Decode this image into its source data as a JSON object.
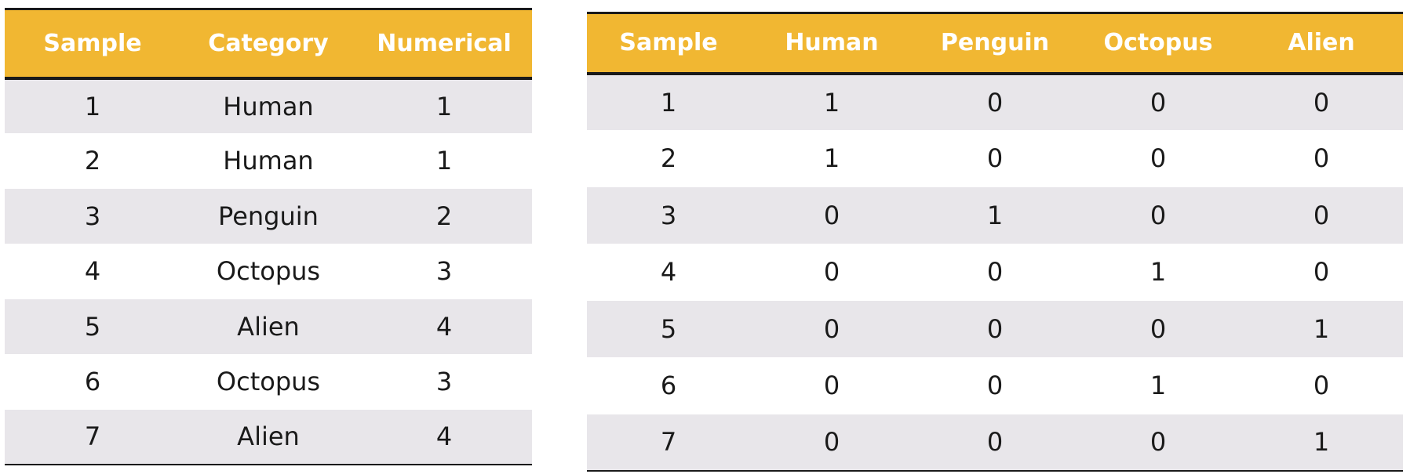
{
  "colors": {
    "header_bg": "#f1b732",
    "header_text": "#ffffff",
    "row_shaded": "#e8e6ea",
    "row_plain": "#ffffff",
    "rule": "#1a1a1a",
    "cell_text": "#1a1a1a"
  },
  "label_table": {
    "headers": [
      "Sample",
      "Category",
      "Numerical"
    ],
    "rows": [
      [
        "1",
        "Human",
        "1"
      ],
      [
        "2",
        "Human",
        "1"
      ],
      [
        "3",
        "Penguin",
        "2"
      ],
      [
        "4",
        "Octopus",
        "3"
      ],
      [
        "5",
        "Alien",
        "4"
      ],
      [
        "6",
        "Octopus",
        "3"
      ],
      [
        "7",
        "Alien",
        "4"
      ]
    ]
  },
  "onehot_table": {
    "headers": [
      "Sample",
      "Human",
      "Penguin",
      "Octopus",
      "Alien"
    ],
    "rows": [
      [
        "1",
        "1",
        "0",
        "0",
        "0"
      ],
      [
        "2",
        "1",
        "0",
        "0",
        "0"
      ],
      [
        "3",
        "0",
        "1",
        "0",
        "0"
      ],
      [
        "4",
        "0",
        "0",
        "1",
        "0"
      ],
      [
        "5",
        "0",
        "0",
        "0",
        "1"
      ],
      [
        "6",
        "0",
        "0",
        "1",
        "0"
      ],
      [
        "7",
        "0",
        "0",
        "0",
        "1"
      ]
    ]
  }
}
